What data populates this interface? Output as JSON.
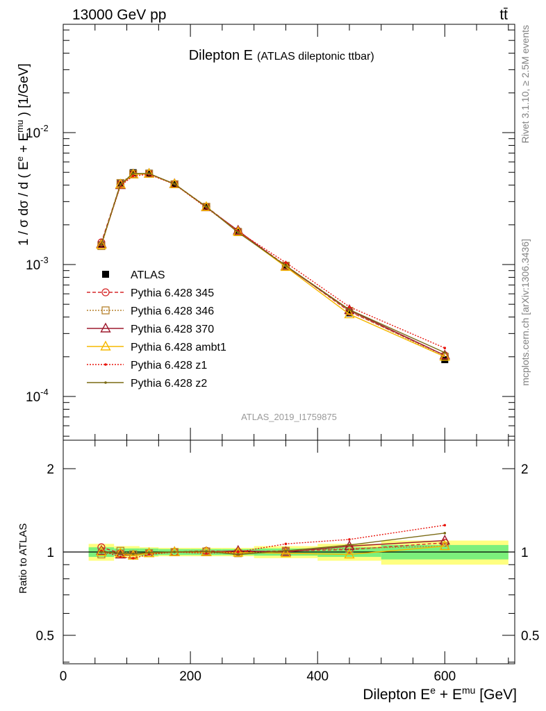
{
  "header": {
    "energy_label": "13000 GeV pp",
    "process_label": "tt̄",
    "title_main": "Dilepton E",
    "title_sub": "(ATLAS dileptonic ttbar)",
    "watermark": "ATLAS_2019_I1759875",
    "side_rivet": "Rivet 3.1.10, ≥ 2.5M events",
    "side_mcplots": "mcplots.cern.ch [arXiv:1306.3436]"
  },
  "axes": {
    "main_ylabel": "1 / σ  dσ / d ( E^e + E^mu ) [1/GeV]",
    "ratio_ylabel": "Ratio to ATLAS",
    "xlabel": "Dilepton E^e + E^mu [GeV]"
  },
  "colors": {
    "ATLAS": "#000000",
    "p345": "#d62728",
    "p346": "#b5812b",
    "p370": "#9e1a2e",
    "ambt1": "#f5b800",
    "z1": "#e8140c",
    "z2": "#7a6a14",
    "band_inner": "#7cf07c",
    "band_outer": "#ffff80"
  },
  "chart_data": [
    {
      "type": "line",
      "panel": "main",
      "title": "Dilepton E (ATLAS dileptonic ttbar)",
      "xlabel": "Dilepton E^e + E^mu [GeV]",
      "ylabel": "1 / σ dσ / d ( E^e + E^mu ) [1/GeV]",
      "xlim": [
        0,
        710
      ],
      "ylim": [
        4.6e-05,
        0.09
      ],
      "yscale": "log",
      "y_ticks": [
        "10^-4",
        "10^-3",
        "10^-2"
      ],
      "x_ticks": [
        "0",
        "200",
        "400",
        "600"
      ],
      "legend_position": "left-middle",
      "x": [
        60,
        90,
        110,
        135,
        175,
        225,
        275,
        350,
        450,
        600
      ],
      "series": [
        {
          "name": "ATLAS",
          "key": "ATLAS",
          "marker": "square",
          "line": "none",
          "values": [
            0.00141,
            0.0041,
            0.00497,
            0.00493,
            0.00406,
            0.00272,
            0.00178,
            0.00097,
            0.00043,
            0.00019
          ]
        },
        {
          "name": "Pythia 6.428 345",
          "key": "p345",
          "marker": "circle",
          "line": "dashed",
          "values": [
            0.00147,
            0.00407,
            0.00482,
            0.00488,
            0.00408,
            0.00275,
            0.00179,
            0.000985,
            0.00044,
            0.000205
          ]
        },
        {
          "name": "Pythia 6.428 346",
          "key": "p346",
          "marker": "square-open",
          "line": "dotted",
          "values": [
            0.00138,
            0.00415,
            0.00487,
            0.00488,
            0.00406,
            0.00274,
            0.00176,
            0.00098,
            0.000445,
            0.0002
          ]
        },
        {
          "name": "Pythia 6.428 370",
          "key": "p370",
          "marker": "triangle",
          "line": "solid",
          "values": [
            0.00143,
            0.004,
            0.00482,
            0.00488,
            0.00408,
            0.00272,
            0.00181,
            0.00097,
            0.000452,
            0.000205
          ]
        },
        {
          "name": "Pythia 6.428 ambt1",
          "key": "ambt1",
          "marker": "triangle",
          "line": "solid",
          "values": [
            0.00141,
            0.00405,
            0.00482,
            0.00488,
            0.00407,
            0.00273,
            0.00177,
            0.00096,
            0.00042,
            0.0002
          ]
        },
        {
          "name": "Pythia 6.428 z1",
          "key": "z1",
          "marker": "dot",
          "line": "dotted",
          "values": [
            0.00143,
            0.00395,
            0.0047,
            0.00482,
            0.00406,
            0.0027,
            0.00178,
            0.001035,
            0.000478,
            0.000233
          ]
        },
        {
          "name": "Pythia 6.428 z2",
          "key": "z2",
          "marker": "dot",
          "line": "solid",
          "values": [
            0.00142,
            0.00405,
            0.0049,
            0.0049,
            0.00408,
            0.00274,
            0.00175,
            0.00098,
            0.000455,
            0.000215
          ]
        }
      ]
    },
    {
      "type": "line",
      "panel": "ratio",
      "ylabel": "Ratio to ATLAS",
      "xlabel": "Dilepton E^e + E^mu [GeV]",
      "xlim": [
        0,
        710
      ],
      "ylim": [
        0.4,
        2.4
      ],
      "yscale": "log",
      "y_ticks": [
        "0.5",
        "1",
        "2"
      ],
      "x_ticks": [
        "0",
        "200",
        "400",
        "600"
      ],
      "reference_band": {
        "x_edges": [
          40,
          80,
          100,
          120,
          150,
          200,
          250,
          300,
          400,
          500,
          700
        ],
        "inner_up": [
          1.04,
          1.03,
          1.03,
          1.03,
          1.025,
          1.025,
          1.025,
          1.03,
          1.04,
          1.06
        ],
        "inner_down": [
          0.96,
          0.97,
          0.97,
          0.97,
          0.975,
          0.975,
          0.975,
          0.97,
          0.96,
          0.94
        ],
        "outer_up": [
          1.07,
          1.05,
          1.05,
          1.04,
          1.035,
          1.035,
          1.035,
          1.05,
          1.07,
          1.1
        ],
        "outer_down": [
          0.93,
          0.95,
          0.95,
          0.96,
          0.965,
          0.965,
          0.965,
          0.95,
          0.93,
          0.9
        ]
      },
      "x": [
        60,
        90,
        110,
        135,
        175,
        225,
        275,
        350,
        450,
        600
      ],
      "series": [
        {
          "name": "Pythia 6.428 345",
          "key": "p345",
          "values": [
            1.04,
            0.99,
            0.97,
            0.99,
            1.0,
            1.01,
            1.0,
            1.01,
            1.02,
            1.08
          ]
        },
        {
          "name": "Pythia 6.428 346",
          "key": "p346",
          "values": [
            0.98,
            1.01,
            0.98,
            0.99,
            1.0,
            1.005,
            0.99,
            1.01,
            1.03,
            1.05
          ]
        },
        {
          "name": "Pythia 6.428 370",
          "key": "p370",
          "values": [
            1.01,
            0.98,
            0.97,
            0.99,
            1.0,
            1.0,
            1.01,
            1.0,
            1.05,
            1.1
          ]
        },
        {
          "name": "Pythia 6.428 ambt1",
          "key": "ambt1",
          "values": [
            1.0,
            0.99,
            0.97,
            0.99,
            1.0,
            1.0,
            0.995,
            0.99,
            0.98,
            1.05
          ]
        },
        {
          "name": "Pythia 6.428 z1",
          "key": "z1",
          "values": [
            1.01,
            0.96,
            0.95,
            0.98,
            1.0,
            0.99,
            1.0,
            1.07,
            1.11,
            1.25
          ]
        },
        {
          "name": "Pythia 6.428 z2",
          "key": "z2",
          "values": [
            1.0,
            0.99,
            0.985,
            0.995,
            1.0,
            1.005,
            0.98,
            1.01,
            1.06,
            1.17
          ]
        }
      ]
    }
  ]
}
